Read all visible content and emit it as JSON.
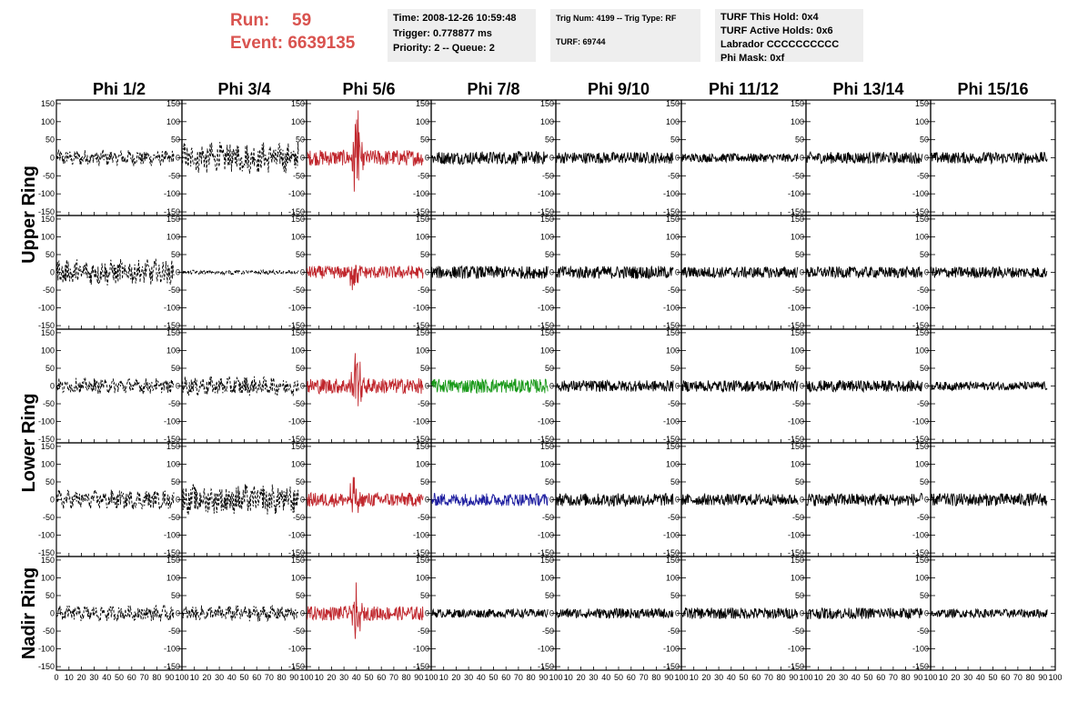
{
  "header": {
    "run_label": "Run:",
    "run_value": "59",
    "event_label": "Event:",
    "event_value": "6639135"
  },
  "info_boxes": {
    "time": [
      "Time: 2008-12-26 10:59:48",
      "Trigger: 0.778877 ms",
      "Priority: 2 -- Queue: 2"
    ],
    "trig": [
      "Trig Num: 4199 -- Trig Type: RF",
      "",
      "TURF: 69744"
    ],
    "turf": [
      "TURF This Hold: 0x4",
      "TURF Active Holds: 0x6",
      "Labrador CCCCCCCCCC",
      "Phi Mask: 0xf"
    ]
  },
  "chart_data": {
    "type": "line",
    "columns": [
      "Phi 1/2",
      "Phi 3/4",
      "Phi 5/6",
      "Phi 7/8",
      "Phi 9/10",
      "Phi 11/12",
      "Phi 13/14",
      "Phi 15/16"
    ],
    "rows": [
      "Upper Ring",
      "Upper Ring",
      "Lower Ring",
      "Lower Ring",
      "Nadir Ring"
    ],
    "row_titles": [
      {
        "label": "Upper Ring",
        "rows": [
          0,
          1
        ]
      },
      {
        "label": "Lower Ring",
        "rows": [
          2,
          3
        ]
      },
      {
        "label": "Nadir Ring",
        "rows": [
          4
        ]
      }
    ],
    "xlim": [
      0,
      100
    ],
    "ylim": [
      -160,
      160
    ],
    "x_ticks": [
      0,
      10,
      20,
      30,
      40,
      50,
      60,
      70,
      80,
      90,
      100
    ],
    "y_ticks": [
      -150,
      -100,
      -50,
      0,
      50,
      100,
      150
    ],
    "x_tick_labels": [
      "0",
      "10",
      "20",
      "30",
      "40",
      "50",
      "60",
      "70",
      "80",
      "90",
      "100"
    ],
    "y_tick_labels": [
      "-150",
      "-100",
      "-50",
      "0",
      "50",
      "100",
      "150"
    ],
    "trace_styles": {
      "black": "#000000",
      "dashed": "#000000",
      "red": "#c0272d",
      "green": "#1a9a1a",
      "blue": "#1f1fa0"
    },
    "panels": [
      [
        {
          "style": "dashed",
          "amp": 18
        },
        {
          "style": "dashed",
          "amp": 35
        },
        {
          "style": "red",
          "amp": 22,
          "spike": 145,
          "spike_x": 40
        },
        {
          "style": "black",
          "amp": 18
        },
        {
          "style": "black",
          "amp": 16
        },
        {
          "style": "black",
          "amp": 12
        },
        {
          "style": "black",
          "amp": 16
        },
        {
          "style": "black",
          "amp": 16
        }
      ],
      [
        {
          "style": "dashed",
          "amp": 30
        },
        {
          "style": "dashed",
          "amp": 5
        },
        {
          "style": "red",
          "amp": 18,
          "spike": 55,
          "spike_x": 38
        },
        {
          "style": "black",
          "amp": 18
        },
        {
          "style": "black",
          "amp": 18
        },
        {
          "style": "black",
          "amp": 16
        },
        {
          "style": "black",
          "amp": 16
        },
        {
          "style": "black",
          "amp": 16
        }
      ],
      [
        {
          "style": "dashed",
          "amp": 18
        },
        {
          "style": "dashed",
          "amp": 22
        },
        {
          "style": "red",
          "amp": 22,
          "spike": 110,
          "spike_x": 40
        },
        {
          "style": "green",
          "amp": 20
        },
        {
          "style": "black",
          "amp": 16
        },
        {
          "style": "black",
          "amp": 16
        },
        {
          "style": "black",
          "amp": 16
        },
        {
          "style": "black",
          "amp": 12
        }
      ],
      [
        {
          "style": "dashed",
          "amp": 22
        },
        {
          "style": "dashed",
          "amp": 35
        },
        {
          "style": "red",
          "amp": 20,
          "spike": 60,
          "spike_x": 38
        },
        {
          "style": "blue",
          "amp": 18
        },
        {
          "style": "black",
          "amp": 18
        },
        {
          "style": "black",
          "amp": 16
        },
        {
          "style": "black",
          "amp": 18
        },
        {
          "style": "black",
          "amp": 18
        }
      ],
      [
        {
          "style": "dashed",
          "amp": 18
        },
        {
          "style": "dashed",
          "amp": 18
        },
        {
          "style": "red",
          "amp": 20,
          "spike": 75,
          "spike_x": 40
        },
        {
          "style": "black",
          "amp": 12
        },
        {
          "style": "black",
          "amp": 14
        },
        {
          "style": "black",
          "amp": 16
        },
        {
          "style": "black",
          "amp": 16
        },
        {
          "style": "black",
          "amp": 12
        }
      ]
    ]
  }
}
